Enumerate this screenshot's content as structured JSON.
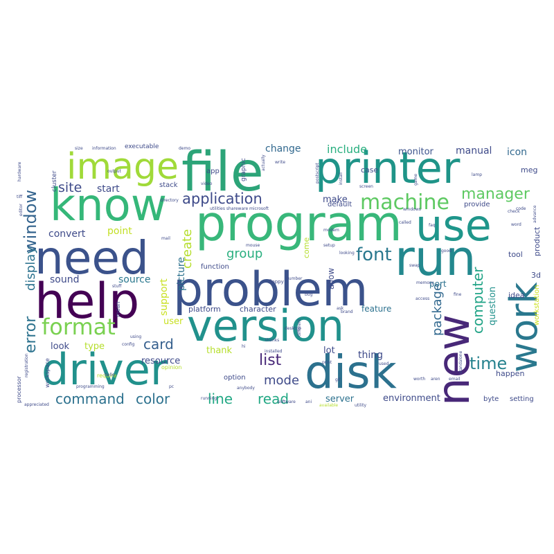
{
  "words": [
    {
      "text": "file",
      "color": "#2ca478"
    },
    {
      "text": "printer",
      "color": "#1f9488"
    },
    {
      "text": "program",
      "color": "#38b77a"
    },
    {
      "text": "know",
      "color": "#35b779"
    },
    {
      "text": "use",
      "color": "#1f968b"
    },
    {
      "text": "image",
      "color": "#a0da39"
    },
    {
      "text": "need",
      "color": "#3b528b"
    },
    {
      "text": "run",
      "color": "#23888e"
    },
    {
      "text": "problem",
      "color": "#3b528b"
    },
    {
      "text": "help",
      "color": "#440154"
    },
    {
      "text": "version",
      "color": "#21918c"
    },
    {
      "text": "new",
      "color": "#482878"
    },
    {
      "text": "work",
      "color": "#2a788e"
    },
    {
      "text": "driver",
      "color": "#21918c"
    },
    {
      "text": "disk",
      "color": "#2c718e"
    },
    {
      "text": "format",
      "color": "#7ad151"
    },
    {
      "text": "window",
      "color": "#33638d"
    },
    {
      "text": "machine",
      "color": "#5ec962"
    },
    {
      "text": "application",
      "color": "#3e4a89"
    },
    {
      "text": "site",
      "color": "#3e4a89"
    },
    {
      "text": "start",
      "color": "#3e4a89"
    },
    {
      "text": "font",
      "color": "#2a788e"
    },
    {
      "text": "manager",
      "color": "#5ec962"
    },
    {
      "text": "computer",
      "color": "#20a386"
    },
    {
      "text": "time",
      "color": "#26828e"
    },
    {
      "text": "error",
      "color": "#2c728e"
    },
    {
      "text": "display",
      "color": "#2c728e"
    },
    {
      "text": "command",
      "color": "#2c718e"
    },
    {
      "text": "color",
      "color": "#2c718e"
    },
    {
      "text": "line",
      "color": "#22a884"
    },
    {
      "text": "read",
      "color": "#22a884"
    },
    {
      "text": "card",
      "color": "#355f8d"
    },
    {
      "text": "list",
      "color": "#482878"
    },
    {
      "text": "mode",
      "color": "#3e4a89"
    },
    {
      "text": "package",
      "color": "#31688e"
    },
    {
      "text": "group",
      "color": "#29af7f"
    },
    {
      "text": "create",
      "color": "#b5de2b"
    },
    {
      "text": "convert",
      "color": "#3e4a89"
    },
    {
      "text": "point",
      "color": "#c2df23"
    },
    {
      "text": "sound",
      "color": "#3e4a89"
    },
    {
      "text": "source",
      "color": "#2a788e"
    },
    {
      "text": "support",
      "color": "#c8e020"
    },
    {
      "text": "picture",
      "color": "#2c718e"
    },
    {
      "text": "change",
      "color": "#31688e"
    },
    {
      "text": "include",
      "color": "#29af7f"
    },
    {
      "text": "monitor",
      "color": "#3b528b"
    },
    {
      "text": "manual",
      "color": "#3e4a89"
    },
    {
      "text": "icon",
      "color": "#31688e"
    },
    {
      "text": "make",
      "color": "#3e4a89"
    },
    {
      "text": "thing",
      "color": "#3e4a89"
    },
    {
      "text": "lot",
      "color": "#3e4a89"
    },
    {
      "text": "server",
      "color": "#2c718e"
    },
    {
      "text": "environment",
      "color": "#3e4a89"
    },
    {
      "text": "question",
      "color": "#21918c"
    },
    {
      "text": "workstation",
      "color": "#cde11d"
    },
    {
      "text": "look",
      "color": "#3e4a89"
    },
    {
      "text": "type",
      "color": "#b5de2b"
    },
    {
      "text": "thank",
      "color": "#b5de2b"
    },
    {
      "text": "resource",
      "color": "#3e4a89"
    },
    {
      "text": "user",
      "color": "#c8e020"
    },
    {
      "text": "feature",
      "color": "#2c718e"
    },
    {
      "text": "character",
      "color": "#3e4a89"
    },
    {
      "text": "platform",
      "color": "#3e4a89"
    },
    {
      "text": "function",
      "color": "#3e4a89"
    },
    {
      "text": "port",
      "color": "#2c718e"
    },
    {
      "text": "allow",
      "color": "#3e4a89"
    },
    {
      "text": "come",
      "color": "#b5de2b"
    },
    {
      "text": "default",
      "color": "#3e4a89"
    },
    {
      "text": "provide",
      "color": "#3e4a89"
    },
    {
      "text": "product",
      "color": "#3e4a89"
    },
    {
      "text": "tool",
      "color": "#3e4a89"
    },
    {
      "text": "idea",
      "color": "#3e4a89"
    },
    {
      "text": "3d",
      "color": "#3e4a89"
    },
    {
      "text": "happen",
      "color": "#3e4a89"
    },
    {
      "text": "setting",
      "color": "#3e4a89"
    },
    {
      "text": "byte",
      "color": "#3e4a89"
    },
    {
      "text": "option",
      "color": "#3e4a89"
    },
    {
      "text": "case",
      "color": "#3e4a89"
    },
    {
      "text": "meg",
      "color": "#3e4a89"
    },
    {
      "text": "app",
      "color": "#3e4a89"
    },
    {
      "text": "graphic",
      "color": "#3e4a89"
    },
    {
      "text": "stack",
      "color": "#3e4a89"
    },
    {
      "text": "cluster",
      "color": "#3e4a89"
    },
    {
      "text": "executable",
      "color": "#3e4a89"
    },
    {
      "text": "processor",
      "color": "#3e4a89"
    },
    {
      "text": "workspace",
      "color": "#3e4a89"
    },
    {
      "text": "require",
      "color": "#b5de2b"
    },
    {
      "text": "opinion",
      "color": "#b5de2b"
    },
    {
      "text": "mean",
      "color": "#3e4a89"
    },
    {
      "text": "floppy",
      "color": "#3e4a89"
    },
    {
      "text": "hi",
      "color": "#3e4a89"
    },
    {
      "text": "utilities shareware microsoft",
      "color": "#3e4a89"
    },
    {
      "text": "information",
      "color": "#3e4a89"
    },
    {
      "text": "demo",
      "color": "#3e4a89"
    },
    {
      "text": "size",
      "color": "#3e4a89"
    },
    {
      "text": "appreciated",
      "color": "#3e4a89"
    },
    {
      "text": "running",
      "color": "#3e4a89"
    },
    {
      "text": "installed",
      "color": "#3e4a89"
    },
    {
      "text": "anybody",
      "color": "#3e4a89"
    },
    {
      "text": "different",
      "color": "#3e4a89"
    },
    {
      "text": "print",
      "color": "#3e4a89"
    },
    {
      "text": "available",
      "color": "#b5de2b"
    },
    {
      "text": "utility",
      "color": "#3e4a89"
    },
    {
      "text": "directory",
      "color": "#3e4a89"
    },
    {
      "text": "video",
      "color": "#3e4a89"
    },
    {
      "text": "mail",
      "color": "#3e4a89"
    },
    {
      "text": "stuff",
      "color": "#3e4a89"
    },
    {
      "text": "using",
      "color": "#3e4a89"
    },
    {
      "text": "config",
      "color": "#3e4a89"
    },
    {
      "text": "hello",
      "color": "#3e4a89"
    },
    {
      "text": "registration",
      "color": "#3e4a89"
    },
    {
      "text": "programming",
      "color": "#3e4a89"
    },
    {
      "text": "mouse",
      "color": "#3e4a89"
    },
    {
      "text": "setup",
      "color": "#3e4a89"
    },
    {
      "text": "looking",
      "color": "#3e4a89"
    },
    {
      "text": "memory",
      "color": "#3e4a89"
    },
    {
      "text": "access",
      "color": "#3e4a89"
    },
    {
      "text": "desktop",
      "color": "#3e4a89"
    },
    {
      "text": "thanks",
      "color": "#3e4a89"
    },
    {
      "text": "screen",
      "color": "#3e4a89"
    },
    {
      "text": "called",
      "color": "#3e4a89"
    },
    {
      "text": "install",
      "color": "#3e4a89"
    },
    {
      "text": "used",
      "color": "#3e4a89"
    },
    {
      "text": "windows",
      "color": "#3e4a89"
    },
    {
      "text": "lamp",
      "color": "#3e4a89"
    },
    {
      "text": "check",
      "color": "#3e4a89"
    },
    {
      "text": "hardware",
      "color": "#3e4a89"
    },
    {
      "text": "tiff",
      "color": "#3e4a89"
    },
    {
      "text": "editor",
      "color": "#3e4a89"
    },
    {
      "text": "code",
      "color": "#3e4a89"
    },
    {
      "text": "word",
      "color": "#3e4a89"
    },
    {
      "text": "advance",
      "color": "#3e4a89"
    },
    {
      "text": "good",
      "color": "#3e4a89"
    },
    {
      "text": "faq",
      "color": "#3e4a89"
    },
    {
      "text": "swap",
      "color": "#3e4a89"
    },
    {
      "text": "game",
      "color": "#3e4a89"
    },
    {
      "text": "bug",
      "color": "#3e4a89"
    },
    {
      "text": "ask",
      "color": "#3e4a89"
    },
    {
      "text": "gif",
      "color": "#3e4a89"
    },
    {
      "text": "pc",
      "color": "#3e4a89"
    },
    {
      "text": "brand",
      "color": "#3e4a89"
    },
    {
      "text": "number",
      "color": "#3e4a89"
    },
    {
      "text": "postscript",
      "color": "#3e4a89"
    },
    {
      "text": "write",
      "color": "#3e4a89"
    },
    {
      "text": "actually",
      "color": "#3e4a89"
    },
    {
      "text": "output",
      "color": "#3e4a89"
    },
    {
      "text": "modem",
      "color": "#3e4a89"
    },
    {
      "text": "fine",
      "color": "#3e4a89"
    },
    {
      "text": "email",
      "color": "#3e4a89"
    },
    {
      "text": "standalone",
      "color": "#3e4a89"
    },
    {
      "text": "worth",
      "color": "#3e4a89"
    },
    {
      "text": "software",
      "color": "#3e4a89"
    },
    {
      "text": "ani",
      "color": "#3e4a89"
    },
    {
      "text": "aren",
      "color": "#3e4a89"
    }
  ]
}
